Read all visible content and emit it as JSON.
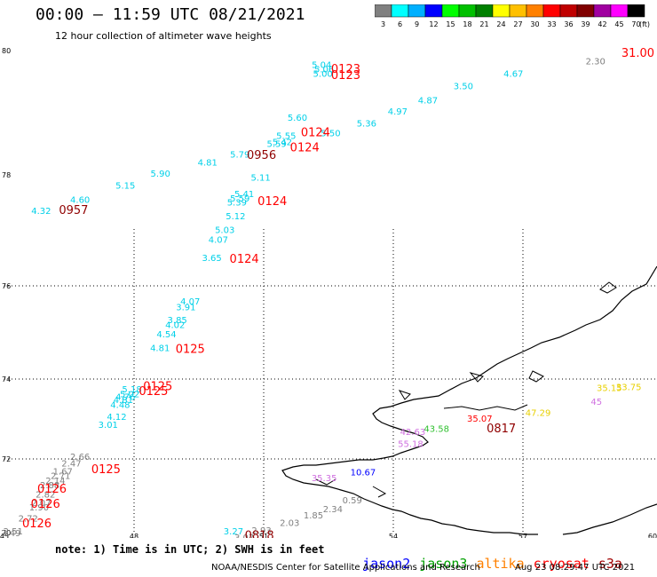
{
  "header": {
    "title": "00:00 – 11:59 UTC 08/21/2021",
    "subtitle": "12 hour collection of altimeter wave heights"
  },
  "colorbar": {
    "unit": "(ft)",
    "ticks": [
      "3",
      "6",
      "9",
      "12",
      "15",
      "18",
      "21",
      "24",
      "27",
      "30",
      "33",
      "36",
      "39",
      "42",
      "45",
      "70"
    ],
    "colors": [
      "#808080",
      "#00ffff",
      "#00b0ff",
      "#0000ff",
      "#00ff00",
      "#00c000",
      "#008000",
      "#ffff00",
      "#ffc000",
      "#ff8000",
      "#ff0000",
      "#c00000",
      "#800000",
      "#a000a0",
      "#ff00ff",
      "#000000"
    ]
  },
  "axes": {
    "x_ticks": [
      "45",
      "48",
      "51",
      "54",
      "57",
      "60"
    ],
    "y_ticks": [
      "70",
      "72",
      "74",
      "76",
      "78",
      "80"
    ]
  },
  "labels": {
    "cyan": [
      {
        "t": "5.04",
        "lon": 52.34,
        "lat": 79.72
      },
      {
        "t": "5.06",
        "lon": 52.4,
        "lat": 79.65
      },
      {
        "t": "5.00",
        "lon": 52.37,
        "lat": 79.58
      },
      {
        "t": "3.50",
        "lon": 55.62,
        "lat": 79.38
      },
      {
        "t": "4.67",
        "lon": 56.78,
        "lat": 79.58
      },
      {
        "t": "4.87",
        "lon": 54.8,
        "lat": 79.15
      },
      {
        "t": "4.97",
        "lon": 54.1,
        "lat": 78.97
      },
      {
        "t": "5.36",
        "lon": 53.38,
        "lat": 78.78
      },
      {
        "t": "5.60",
        "lon": 51.78,
        "lat": 78.87
      },
      {
        "t": "5.50",
        "lon": 52.55,
        "lat": 78.62
      },
      {
        "t": "5.55",
        "lon": 51.52,
        "lat": 78.58
      },
      {
        "t": "5.42",
        "lon": 51.43,
        "lat": 78.48
      },
      {
        "t": "5.59",
        "lon": 51.3,
        "lat": 78.45
      },
      {
        "t": "5.79",
        "lon": 50.45,
        "lat": 78.28
      },
      {
        "t": "4.81",
        "lon": 49.7,
        "lat": 78.15
      },
      {
        "t": "5.90",
        "lon": 48.61,
        "lat": 77.97
      },
      {
        "t": "5.15",
        "lon": 47.8,
        "lat": 77.75
      },
      {
        "t": "4.60",
        "lon": 46.75,
        "lat": 77.5
      },
      {
        "t": "4.32",
        "lon": 45.85,
        "lat": 77.3
      },
      {
        "t": "5.11",
        "lon": 50.93,
        "lat": 77.9
      },
      {
        "t": "5.41",
        "lon": 50.55,
        "lat": 77.6
      },
      {
        "t": "5.59",
        "lon": 50.45,
        "lat": 77.52
      },
      {
        "t": "5.39",
        "lon": 50.38,
        "lat": 77.45
      },
      {
        "t": "5.12",
        "lon": 50.35,
        "lat": 77.2
      },
      {
        "t": "5.03",
        "lon": 50.1,
        "lat": 76.95
      },
      {
        "t": "4.07",
        "lon": 49.95,
        "lat": 76.78
      },
      {
        "t": "3.65",
        "lon": 49.8,
        "lat": 76.45
      },
      {
        "t": "4.07",
        "lon": 49.3,
        "lat": 75.6
      },
      {
        "t": "3.91",
        "lon": 49.2,
        "lat": 75.48
      },
      {
        "t": "3.85",
        "lon": 49.0,
        "lat": 75.2
      },
      {
        "t": "4.02",
        "lon": 48.95,
        "lat": 75.1
      },
      {
        "t": "4.54",
        "lon": 48.75,
        "lat": 74.9
      },
      {
        "t": "4.81",
        "lon": 48.6,
        "lat": 74.6
      },
      {
        "t": "5.18",
        "lon": 47.95,
        "lat": 73.67
      },
      {
        "t": "5.02",
        "lon": 47.9,
        "lat": 73.55
      },
      {
        "t": "4.76",
        "lon": 47.8,
        "lat": 73.48
      },
      {
        "t": "4.81",
        "lon": 47.75,
        "lat": 73.4
      },
      {
        "t": "4.48",
        "lon": 47.68,
        "lat": 73.28
      },
      {
        "t": "4.12",
        "lon": 47.6,
        "lat": 72.98
      },
      {
        "t": "3.01",
        "lon": 47.4,
        "lat": 72.78
      },
      {
        "t": "3.27",
        "lon": 50.3,
        "lat": 69.95
      }
    ],
    "gray": [
      {
        "t": "2.30",
        "lon": 58.68,
        "lat": 79.78
      },
      {
        "t": "2.66",
        "lon": 46.75,
        "lat": 71.98
      },
      {
        "t": "2.47",
        "lon": 46.55,
        "lat": 71.8
      },
      {
        "t": "1.67",
        "lon": 46.35,
        "lat": 71.58
      },
      {
        "t": "2.71",
        "lon": 46.3,
        "lat": 71.46
      },
      {
        "t": "2.14",
        "lon": 46.18,
        "lat": 71.33
      },
      {
        "t": "2.88",
        "lon": 46.05,
        "lat": 71.2
      },
      {
        "t": "2.82",
        "lon": 45.95,
        "lat": 70.95
      },
      {
        "t": "2.07",
        "lon": 45.85,
        "lat": 70.72
      },
      {
        "t": "1.90",
        "lon": 45.8,
        "lat": 70.6
      },
      {
        "t": "2.72",
        "lon": 45.55,
        "lat": 70.3
      },
      {
        "t": "2.51",
        "lon": 45.2,
        "lat": 69.95
      },
      {
        "t": "2.49",
        "lon": 45.15,
        "lat": 69.9
      },
      {
        "t": "0.59",
        "lon": 53.05,
        "lat": 70.8
      },
      {
        "t": "1.85",
        "lon": 52.15,
        "lat": 70.38
      },
      {
        "t": "2.34",
        "lon": 52.6,
        "lat": 70.55
      },
      {
        "t": "2.03",
        "lon": 51.6,
        "lat": 70.18
      },
      {
        "t": "2.93",
        "lon": 50.95,
        "lat": 69.97
      },
      {
        "t": "3.07",
        "lon": 50.55,
        "lat": 69.78
      }
    ],
    "red": [
      {
        "t": "31.00",
        "lon": 59.66,
        "lat": 79.9,
        "size": "big"
      },
      {
        "t": "0123",
        "lon": 52.9,
        "lat": 79.64,
        "size": "big"
      },
      {
        "t": "0123",
        "lon": 52.9,
        "lat": 79.54,
        "size": "big"
      },
      {
        "t": "0124",
        "lon": 52.2,
        "lat": 78.62,
        "size": "big"
      },
      {
        "t": "0124",
        "lon": 51.95,
        "lat": 78.38,
        "size": "big"
      },
      {
        "t": "0124",
        "lon": 51.2,
        "lat": 77.46,
        "size": "big"
      },
      {
        "t": "0124",
        "lon": 50.55,
        "lat": 76.42,
        "size": "big"
      },
      {
        "t": "0125",
        "lon": 49.3,
        "lat": 74.56,
        "size": "big"
      },
      {
        "t": "0125",
        "lon": 48.55,
        "lat": 73.72,
        "size": "big"
      },
      {
        "t": "0125",
        "lon": 48.45,
        "lat": 73.6,
        "size": "big"
      },
      {
        "t": "0125",
        "lon": 47.35,
        "lat": 71.62,
        "size": "big"
      },
      {
        "t": "0126",
        "lon": 46.1,
        "lat": 71.08,
        "size": "big"
      },
      {
        "t": "0126",
        "lon": 45.95,
        "lat": 70.68,
        "size": "big"
      },
      {
        "t": "0126",
        "lon": 45.75,
        "lat": 70.15,
        "size": "big"
      },
      {
        "t": "35.07",
        "lon": 56.0,
        "lat": 72.93,
        "size": "lbl"
      }
    ],
    "darkred": [
      {
        "t": "0956",
        "lon": 50.95,
        "lat": 78.26,
        "size": "big"
      },
      {
        "t": "0957",
        "lon": 46.6,
        "lat": 77.3,
        "size": "big"
      },
      {
        "t": "0818",
        "lon": 50.9,
        "lat": 69.82,
        "size": "big"
      },
      {
        "t": "0817",
        "lon": 56.5,
        "lat": 72.67,
        "size": "big"
      }
    ],
    "green": [
      {
        "t": "43.58",
        "lon": 55.0,
        "lat": 72.68
      }
    ],
    "violet": [
      {
        "t": "42.63",
        "lon": 54.45,
        "lat": 72.6
      },
      {
        "t": "55.18",
        "lon": 54.4,
        "lat": 72.3
      },
      {
        "t": "35.35",
        "lon": 52.4,
        "lat": 71.4
      },
      {
        "t": "45",
        "lon": 58.7,
        "lat": 73.36
      }
    ],
    "blue": [
      {
        "t": "10.67",
        "lon": 53.3,
        "lat": 71.55
      }
    ],
    "yellow": [
      {
        "t": "35.15",
        "lon": 59.0,
        "lat": 73.7
      },
      {
        "t": "33.75",
        "lon": 59.45,
        "lat": 73.72
      },
      {
        "t": "47.29",
        "lon": 57.35,
        "lat": 73.08
      }
    ]
  },
  "note": "note: 1) Time is in UTC; 2) SWH is in feet",
  "legend": {
    "jason2": {
      "label": "jason2",
      "color": "#0000ff"
    },
    "jason3": {
      "label": "jason3",
      "color": "#00a000"
    },
    "altika": {
      "label": "altika",
      "color": "#ff8000"
    },
    "cryosat": {
      "label": "cryosat",
      "color": "#ff0000"
    },
    "s3a": {
      "label": "s3a",
      "color": "#a00000"
    }
  },
  "footer": {
    "credit": "NOAA/NESDIS Center for Satellite Applications and Research",
    "timestamp": "Aug 23 08:29:47 UTC 2021"
  }
}
